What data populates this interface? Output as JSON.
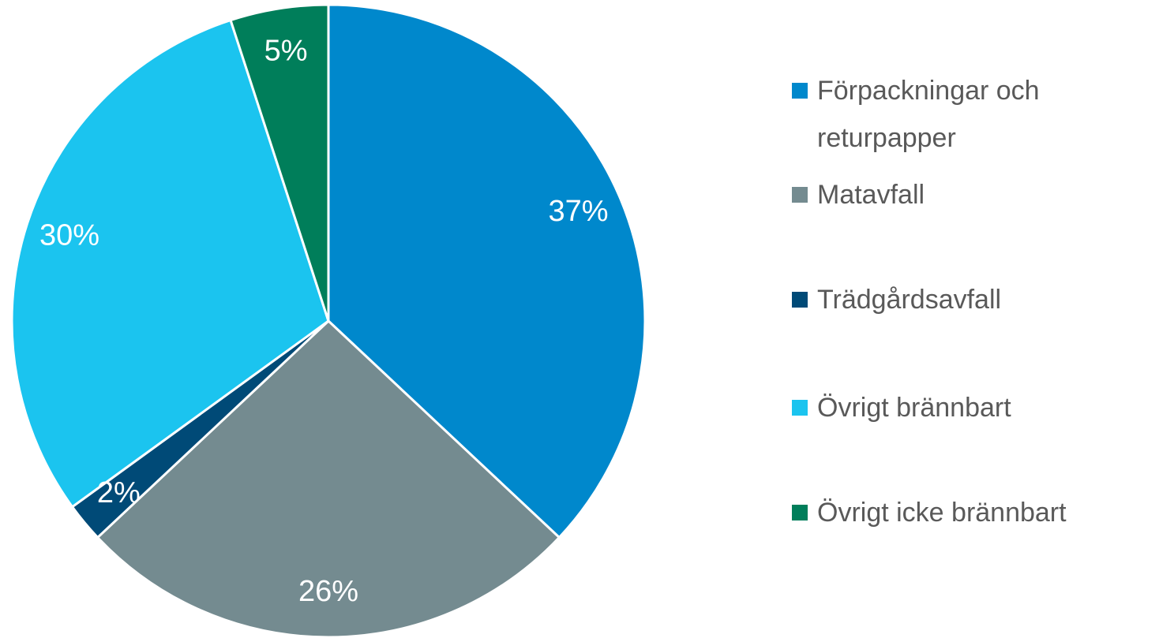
{
  "chart_data": {
    "type": "pie",
    "categories": [
      "Förpackningar och returpapper",
      "Matavfall",
      "Trädgårdsavfall",
      "Övrigt brännbart",
      "Övrigt icke brännbart"
    ],
    "values": [
      37,
      26,
      2,
      30,
      5
    ],
    "value_labels": [
      "37%",
      "26%",
      "2%",
      "30%",
      "5%"
    ],
    "colors": [
      "#0088cc",
      "#748b90",
      "#004a77",
      "#1bc4ef",
      "#007e5a"
    ],
    "legend": "right"
  }
}
